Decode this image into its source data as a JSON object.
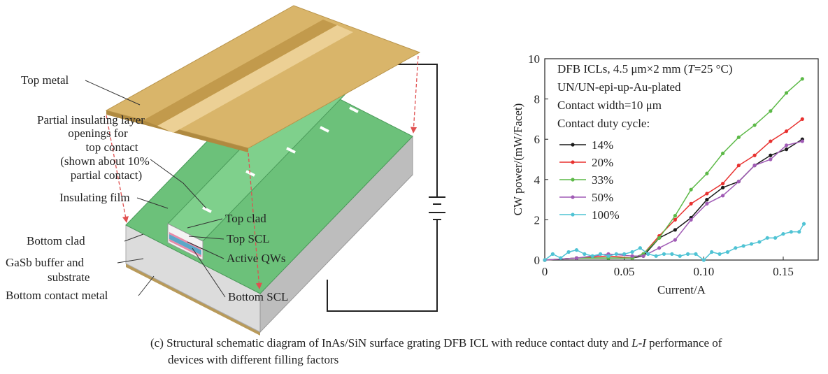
{
  "chart_data": {
    "type": "line",
    "ylabel": "CW power/(mW/Facet)",
    "xlabel": "Current/A",
    "xlim": [
      0,
      0.172
    ],
    "ylim": [
      0,
      10
    ],
    "xticks": [
      0,
      0.05,
      {
        "value": 0.1,
        "label": "0.10"
      },
      0.15
    ],
    "yticks": [
      0,
      2,
      4,
      6,
      8,
      10
    ],
    "annotations": [
      [
        "DFB ICLs, 4.5 μm×2 mm (",
        "T",
        "=25 °C)"
      ],
      "UN/UN-epi-up-Au-plated",
      "Contact width=10 μm",
      "Contact duty cycle:"
    ],
    "series": [
      {
        "name": "14%",
        "color": "#1a1a1a",
        "x": [
          0,
          0.02,
          0.04,
          0.055,
          0.062,
          0.072,
          0.082,
          0.092,
          0.102,
          0.112,
          0.122,
          0.132,
          0.142,
          0.152,
          0.162
        ],
        "values": [
          0,
          0.1,
          0.1,
          0.1,
          0.2,
          1.1,
          1.5,
          2.1,
          3.0,
          3.6,
          3.9,
          4.7,
          5.2,
          5.5,
          6.0
        ]
      },
      {
        "name": "20%",
        "color": "#e8312f",
        "x": [
          0,
          0.02,
          0.04,
          0.055,
          0.062,
          0.072,
          0.082,
          0.092,
          0.102,
          0.112,
          0.122,
          0.132,
          0.142,
          0.152,
          0.162
        ],
        "values": [
          0,
          0.1,
          0.2,
          0.1,
          0.3,
          1.2,
          2.0,
          2.8,
          3.3,
          3.8,
          4.7,
          5.2,
          5.9,
          6.4,
          7.0
        ]
      },
      {
        "name": "33%",
        "color": "#5cb947",
        "x": [
          0,
          0.02,
          0.04,
          0.055,
          0.062,
          0.072,
          0.082,
          0.092,
          0.102,
          0.112,
          0.122,
          0.132,
          0.142,
          0.152,
          0.162
        ],
        "values": [
          0,
          0.1,
          0.1,
          0.1,
          0.3,
          1.1,
          2.2,
          3.5,
          4.3,
          5.3,
          6.1,
          6.7,
          7.4,
          8.3,
          9.0
        ]
      },
      {
        "name": "50%",
        "color": "#a05bb5",
        "x": [
          0,
          0.02,
          0.04,
          0.055,
          0.062,
          0.072,
          0.082,
          0.092,
          0.102,
          0.112,
          0.122,
          0.132,
          0.142,
          0.152,
          0.162
        ],
        "values": [
          0,
          0.1,
          0.3,
          0.2,
          0.2,
          0.6,
          1.0,
          2.0,
          2.8,
          3.2,
          3.9,
          4.7,
          5.0,
          5.7,
          5.9
        ]
      },
      {
        "name": "100%",
        "color": "#4fc3d4",
        "x": [
          0,
          0.005,
          0.01,
          0.015,
          0.02,
          0.025,
          0.03,
          0.035,
          0.04,
          0.045,
          0.05,
          0.055,
          0.06,
          0.065,
          0.07,
          0.075,
          0.08,
          0.085,
          0.09,
          0.095,
          0.1,
          0.105,
          0.11,
          0.115,
          0.12,
          0.125,
          0.13,
          0.135,
          0.14,
          0.145,
          0.15,
          0.155,
          0.16,
          0.163
        ],
        "values": [
          0,
          0.3,
          0.1,
          0.4,
          0.5,
          0.3,
          0.2,
          0.3,
          0.2,
          0.3,
          0.3,
          0.4,
          0.6,
          0.3,
          0.2,
          0.3,
          0.3,
          0.2,
          0.3,
          0.3,
          0.0,
          0.4,
          0.3,
          0.4,
          0.6,
          0.7,
          0.8,
          0.9,
          1.1,
          1.1,
          1.3,
          1.4,
          1.4,
          1.8
        ]
      }
    ]
  },
  "diagram": {
    "labels": {
      "top_metal": "Top metal",
      "partial_openings": [
        "Partial insulating layer",
        "openings for",
        "top contact",
        "(shown about 10%",
        "partial contact)"
      ],
      "insulating_film": "Insulating film",
      "top_clad": "Top clad",
      "top_scl": "Top SCL",
      "active_qws": "Active QWs",
      "bottom_scl": "Bottom SCL",
      "bottom_clad": "Bottom clad",
      "gasb": [
        "GaSb buffer and",
        "substrate"
      ],
      "bottom_contact_metal": "Bottom contact metal"
    }
  },
  "caption": {
    "line1": [
      "(c) Structural schematic diagram of InAs/SiN surface grating DFB ICL with reduce contact duty and ",
      "L-I",
      " performance of"
    ],
    "line2": "devices with different filling factors"
  }
}
